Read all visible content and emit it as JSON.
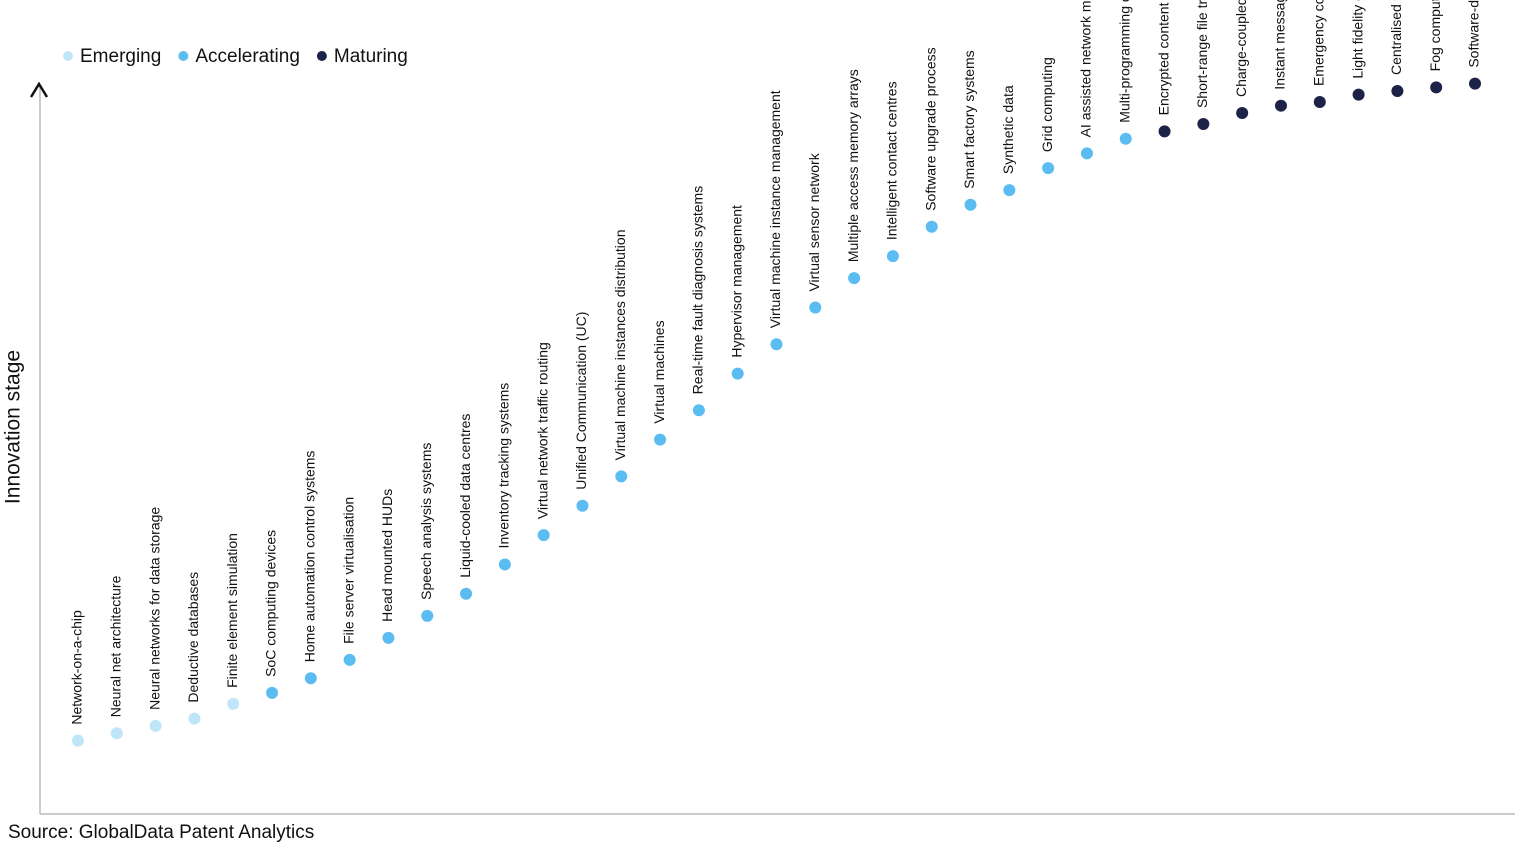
{
  "chart_data": {
    "type": "scatter",
    "y_label": "Innovation stage",
    "source": "Source: GlobalData Patent Analytics",
    "ylim": [
      0,
      100
    ],
    "categories": [
      "Network-on-a-chip",
      "Neural net architecture",
      "Neural networks for data storage",
      "Deductive databases",
      "Finite element simulation",
      "SoC computing devices",
      "Home automation control systems",
      "File server virtualisation",
      "Head mounted HUDs",
      "Speech analysis systems",
      "Liquid-cooled data centres",
      "Inventory tracking systems",
      "Virtual network traffic routing",
      "Unified Communication (UC)",
      "Virtual machine instances distribution",
      "Virtual machines",
      "Real-time fault diagnosis systems",
      "Hypervisor management",
      "Virtual machine instance management",
      "Virtual sensor network",
      "Multiple access memory arrays",
      "Intelligent contact centres",
      "Software upgrade process",
      "Smart factory systems",
      "Synthetic data",
      "Grid computing",
      "AI assisted network management",
      "Multi-programming operating systems",
      "Encrypted content distribution",
      "Short-range file transfer networks",
      "Charge-coupled device (CCD) memory",
      "Instant messaging applications",
      "Emergency communications network",
      "Light fidelity communication (Li-fi)",
      "Centralised telemetry systems",
      "Fog computing",
      "Software-defined wide area network (WAN)"
    ],
    "series": [
      {
        "name": "Emerging",
        "color": "#bfe6f8",
        "values": [
          10,
          11,
          12,
          13,
          15,
          null,
          null,
          null,
          null,
          null,
          null,
          null,
          null,
          null,
          null,
          null,
          null,
          null,
          null,
          null,
          null,
          null,
          null,
          null,
          null,
          null,
          null,
          null,
          null,
          null,
          null,
          null,
          null,
          null,
          null,
          null,
          null
        ]
      },
      {
        "name": "Accelerating",
        "color": "#5bbcf2",
        "values": [
          null,
          null,
          null,
          null,
          null,
          16.5,
          18.5,
          21,
          24,
          27,
          30,
          34,
          38,
          42,
          46,
          51,
          55,
          60,
          64,
          69,
          73,
          76,
          80,
          83,
          85,
          88,
          90,
          92,
          null,
          null,
          null,
          null,
          null,
          null,
          null,
          null,
          null
        ]
      },
      {
        "name": "Maturing",
        "color": "#1d2347",
        "values": [
          null,
          null,
          null,
          null,
          null,
          null,
          null,
          null,
          null,
          null,
          null,
          null,
          null,
          null,
          null,
          null,
          null,
          null,
          null,
          null,
          null,
          null,
          null,
          null,
          null,
          null,
          null,
          null,
          93,
          94,
          95.5,
          96.5,
          97,
          98,
          98.5,
          99,
          99.5
        ]
      }
    ]
  }
}
